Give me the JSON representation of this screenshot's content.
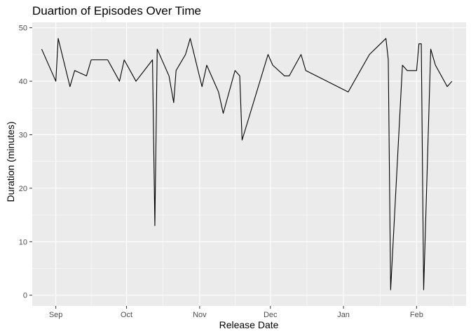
{
  "chart_data": {
    "type": "line",
    "title": "Duartion of Episodes Over Time",
    "xlabel": "Release Date",
    "ylabel": "Duration (minutes)",
    "x_range": [
      "2017-08-22",
      "2018-02-22"
    ],
    "ylim": [
      -2,
      51
    ],
    "grid": true,
    "legend": "none",
    "x_ticks": [
      {
        "date": "2017-09-01",
        "label": "Sep"
      },
      {
        "date": "2017-10-01",
        "label": "Oct"
      },
      {
        "date": "2017-11-01",
        "label": "Nov"
      },
      {
        "date": "2017-12-01",
        "label": "Dec"
      },
      {
        "date": "2018-01-01",
        "label": "Jan"
      },
      {
        "date": "2018-02-01",
        "label": "Feb"
      }
    ],
    "y_ticks": [
      0,
      10,
      20,
      30,
      40,
      50
    ],
    "colors": {
      "panel": "#ebebeb",
      "grid": "#ffffff",
      "line": "#000000"
    },
    "series": [
      {
        "x": [
          "2017-08-26",
          "2017-09-01",
          "2017-09-02",
          "2017-09-07",
          "2017-09-09",
          "2017-09-14",
          "2017-09-16",
          "2017-09-23",
          "2017-09-28",
          "2017-09-30",
          "2017-10-05",
          "2017-10-12",
          "2017-10-13",
          "2017-10-14",
          "2017-10-19",
          "2017-10-21",
          "2017-10-22",
          "2017-10-26",
          "2017-10-28",
          "2017-11-02",
          "2017-11-04",
          "2017-11-09",
          "2017-11-11",
          "2017-11-16",
          "2017-11-18",
          "2017-11-19",
          "2017-11-30",
          "2017-12-02",
          "2017-12-07",
          "2017-12-09",
          "2017-12-14",
          "2017-12-16",
          "2018-01-03",
          "2018-01-12",
          "2018-01-19",
          "2018-01-20",
          "2018-01-21",
          "2018-01-26",
          "2018-01-28",
          "2018-02-01",
          "2018-02-02",
          "2018-02-03",
          "2018-02-04",
          "2018-02-07",
          "2018-02-09",
          "2018-02-14",
          "2018-02-16"
        ],
        "values": [
          46,
          40,
          48,
          39,
          42,
          41,
          44,
          44,
          40,
          44,
          40,
          44,
          13,
          46,
          41,
          36,
          42,
          45,
          48,
          39,
          43,
          38,
          34,
          42,
          41,
          29,
          45,
          43,
          41,
          41,
          45,
          42,
          38,
          45,
          48,
          44,
          1,
          43,
          42,
          42,
          47,
          47,
          1,
          46,
          43,
          39,
          40
        ]
      }
    ]
  }
}
